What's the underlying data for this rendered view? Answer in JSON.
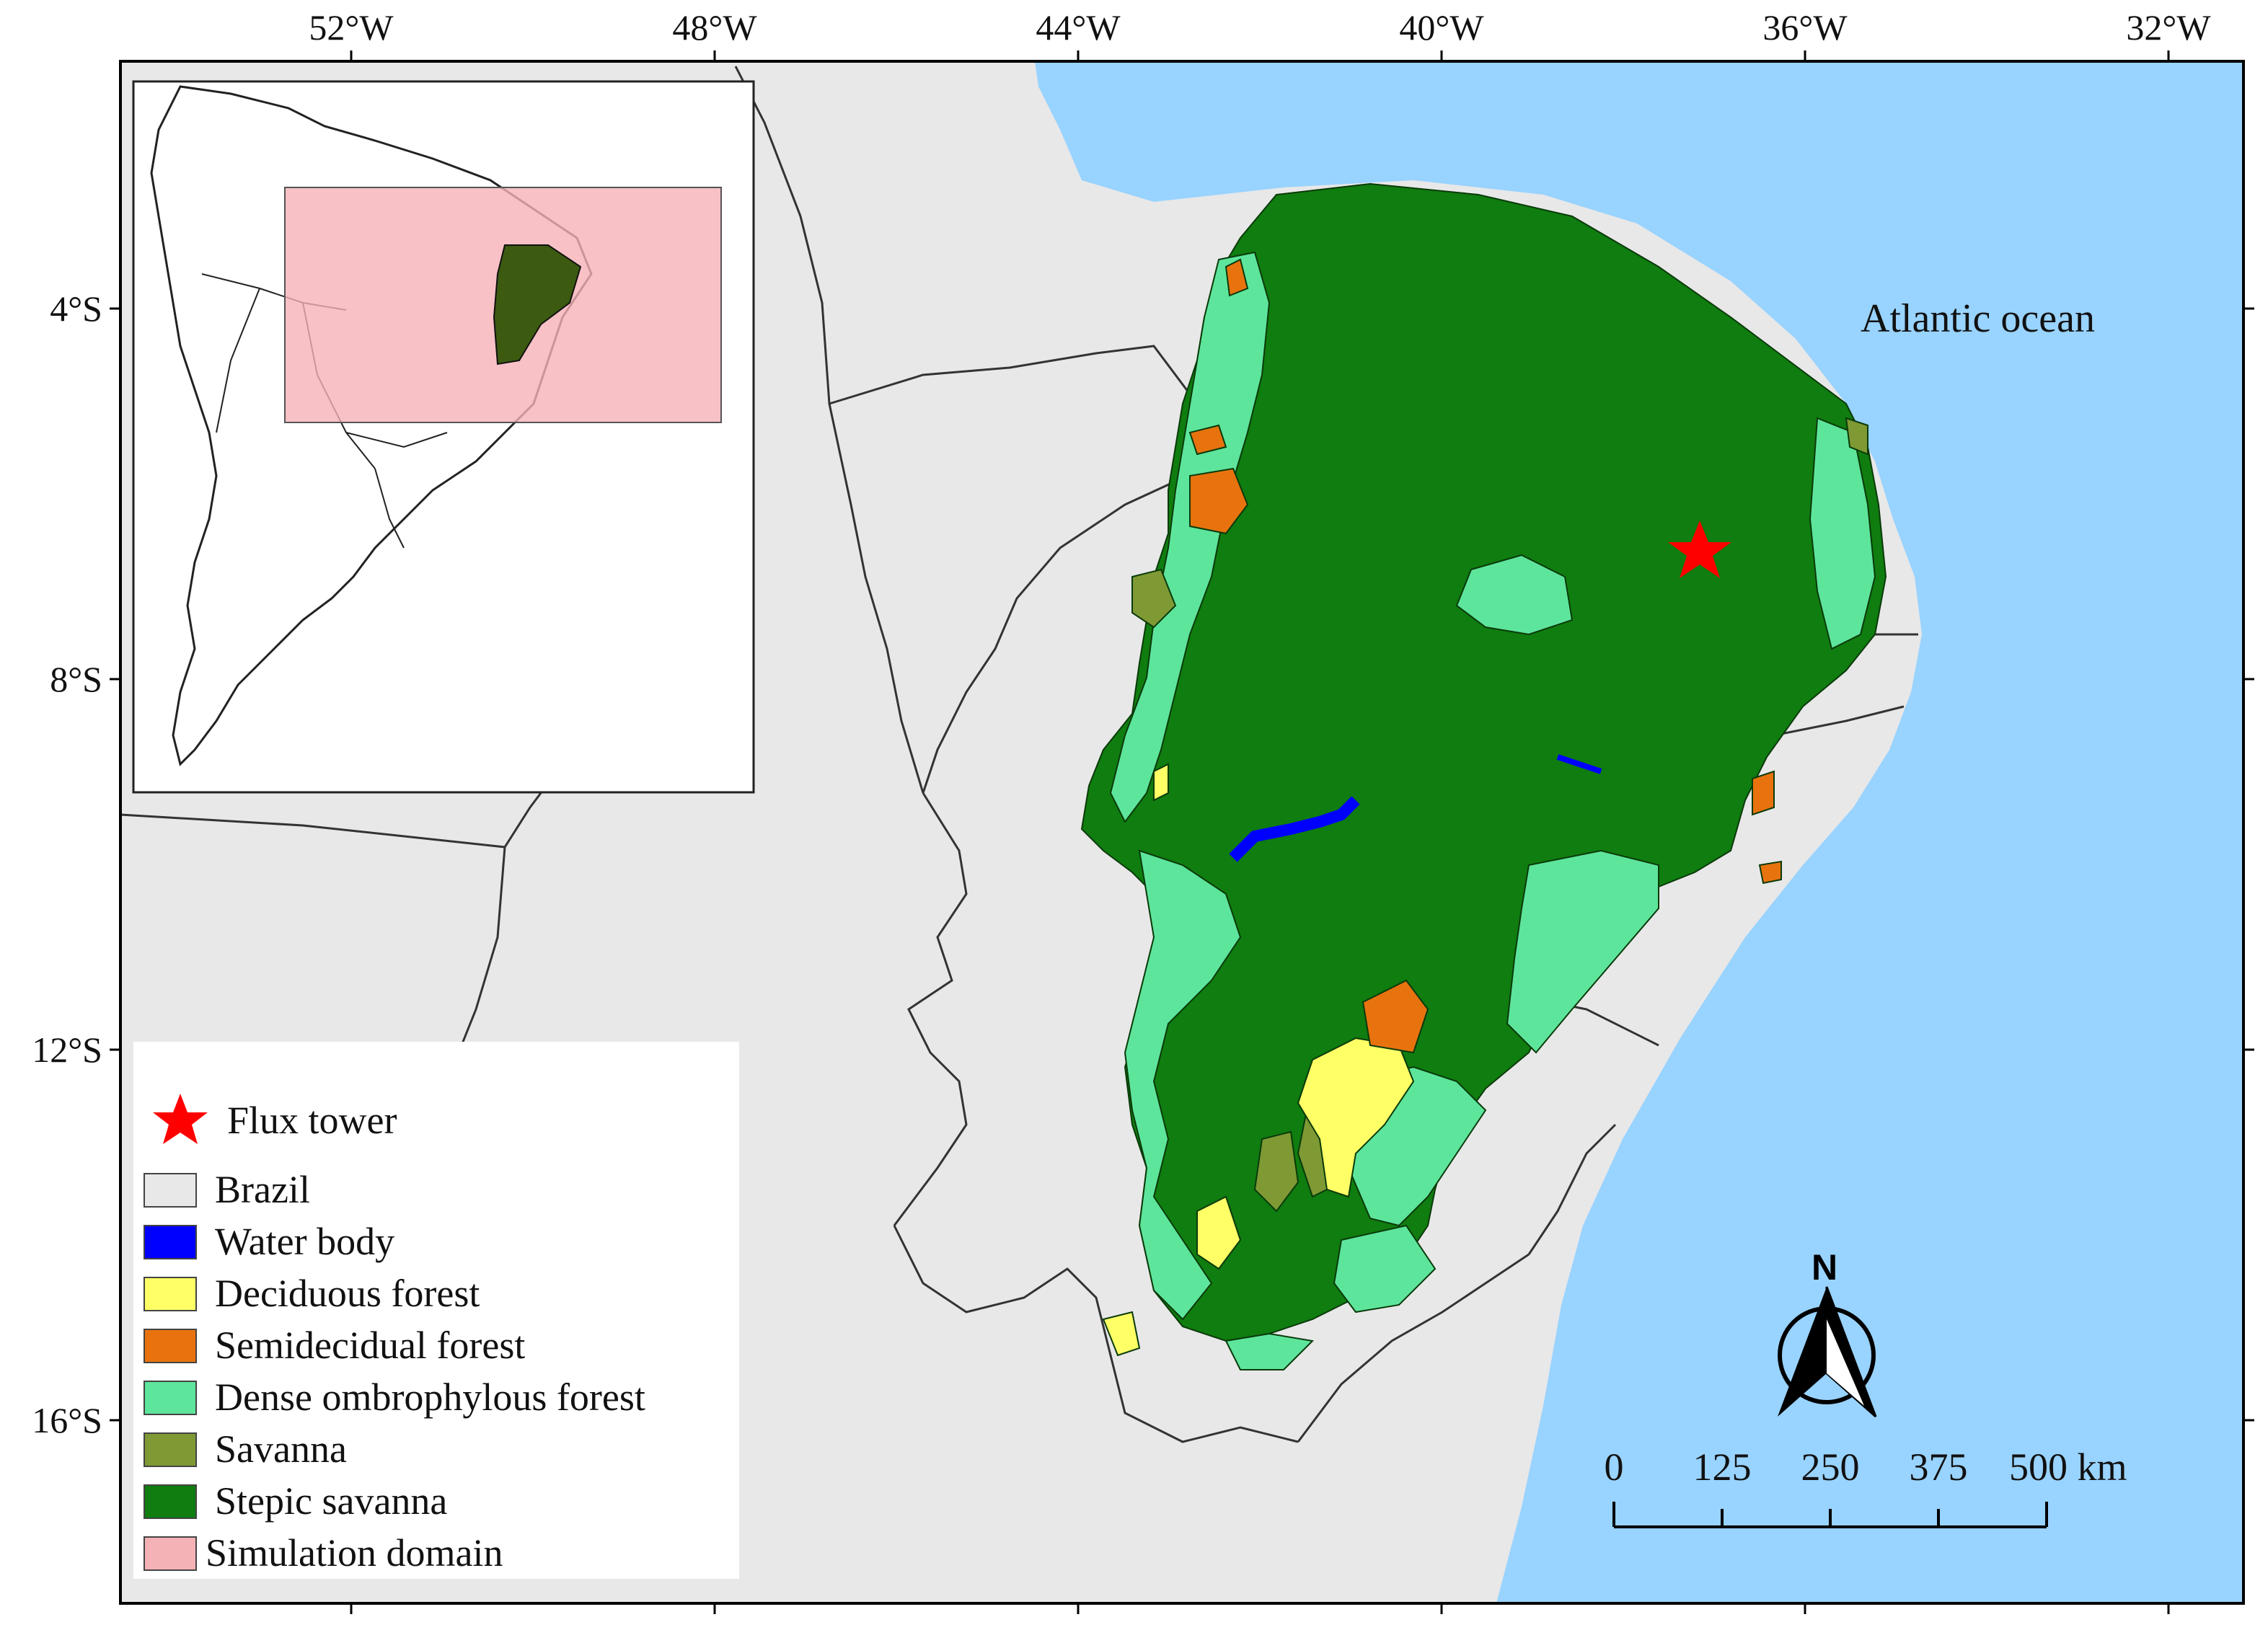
{
  "axes": {
    "lon_labels": [
      "52°W",
      "48°W",
      "44°W",
      "40°W",
      "36°W",
      "32°W"
    ],
    "lat_labels": [
      "4°S",
      "8°S",
      "12°S",
      "16°S"
    ]
  },
  "ocean_label": "Atlantic ocean",
  "legend": {
    "items": [
      {
        "label": "Flux tower",
        "symbol": "star",
        "color": "#ff0000"
      },
      {
        "label": "Brazil",
        "symbol": "swatch",
        "color": "#e8e8e8"
      },
      {
        "label": "Water body",
        "symbol": "swatch",
        "color": "#0000ff"
      },
      {
        "label": "Deciduous forest",
        "symbol": "swatch",
        "color": "#ffff66"
      },
      {
        "label": "Semidecidual forest",
        "symbol": "swatch",
        "color": "#e8730e"
      },
      {
        "label": "Dense ombrophylous forest",
        "symbol": "swatch",
        "color": "#5ee59c"
      },
      {
        "label": "Savanna",
        "symbol": "swatch",
        "color": "#7f9a34"
      },
      {
        "label": "Stepic savanna",
        "symbol": "swatch",
        "color": "#0f7d0f"
      },
      {
        "label": "Simulation domain",
        "symbol": "swatch",
        "color": "#f5b2b6"
      }
    ]
  },
  "scale_bar": {
    "labels": [
      "0",
      "125",
      "250",
      "375",
      "500 km"
    ]
  },
  "north_arrow": {
    "label": "N"
  },
  "colors": {
    "ocean": "#99d3ff",
    "brazil": "#e8e8e8",
    "stepic_savanna": "#0f7d0f",
    "dense_forest": "#5ee59c",
    "savanna": "#7f9a34",
    "deciduous": "#ffff66",
    "semideciduous": "#e8730e",
    "water": "#0000ff",
    "simulation_domain": "#f5b2b6",
    "flux_tower": "#ff0000"
  }
}
